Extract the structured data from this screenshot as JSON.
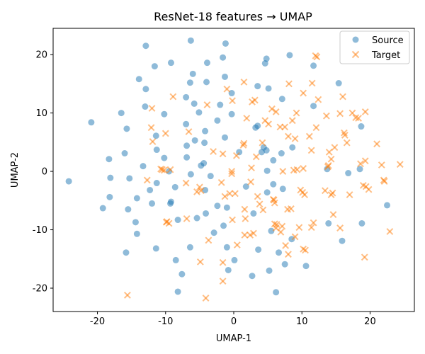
{
  "chart_data": {
    "type": "scatter",
    "title": "ResNet-18 features → UMAP",
    "xlabel": "UMAP-1",
    "ylabel": "UMAP-2",
    "xlim": [
      -26.5,
      26.5
    ],
    "ylim": [
      -24,
      24.5
    ],
    "xticks": [
      -20,
      -10,
      0,
      10,
      20
    ],
    "yticks": [
      -20,
      -10,
      0,
      10,
      20
    ],
    "grid": false,
    "legend_position": "top-right",
    "series": [
      {
        "name": "Source",
        "marker": "circle",
        "color": "#1f77b4",
        "points": [
          [
            -24.2,
            -1.7
          ],
          [
            -20.9,
            8.4
          ],
          [
            -19.2,
            -6.3
          ],
          [
            -18.3,
            2.1
          ],
          [
            -18.1,
            -1.1
          ],
          [
            -18.2,
            -4.4
          ],
          [
            -16.5,
            10.0
          ],
          [
            -16.0,
            3.1
          ],
          [
            -15.7,
            7.3
          ],
          [
            -15.8,
            -13.9
          ],
          [
            -15.5,
            -6.5
          ],
          [
            -15.3,
            -1.2
          ],
          [
            -14.4,
            -8.7
          ],
          [
            -14.2,
            -10.7
          ],
          [
            -14.2,
            -4.6
          ],
          [
            -13.9,
            15.8
          ],
          [
            -13.3,
            0.9
          ],
          [
            -12.9,
            21.5
          ],
          [
            -12.9,
            14.1
          ],
          [
            -13.0,
            11.1
          ],
          [
            -12.3,
            -3.2
          ],
          [
            -12.0,
            -5.5
          ],
          [
            -11.6,
            18.0
          ],
          [
            -11.4,
            6.1
          ],
          [
            -11.3,
            3.7
          ],
          [
            -11.3,
            -2.0
          ],
          [
            -11.4,
            -13.2
          ],
          [
            -10.2,
            9.8
          ],
          [
            -10.2,
            2.3
          ],
          [
            -9.5,
            0.0
          ],
          [
            -9.3,
            -5.5
          ],
          [
            -9.2,
            -5.2
          ],
          [
            -9.2,
            18.6
          ],
          [
            -8.6,
            -2.7
          ],
          [
            -8.5,
            -15.2
          ],
          [
            -8.2,
            -20.6
          ],
          [
            -8.2,
            -8.3
          ],
          [
            -7.6,
            -17.6
          ],
          [
            -7.0,
            12.7
          ],
          [
            -7.0,
            8.1
          ],
          [
            -6.9,
            4.4
          ],
          [
            -6.9,
            2.4
          ],
          [
            -6.4,
            -13.0
          ],
          [
            -6.3,
            -0.5
          ],
          [
            -6.3,
            22.4
          ],
          [
            -6.4,
            15.2
          ],
          [
            -6.0,
            16.7
          ],
          [
            -5.8,
            11.6
          ],
          [
            -5.7,
            5.3
          ],
          [
            -5.4,
            -8.0
          ],
          [
            -5.1,
            10.1
          ],
          [
            -4.8,
            1.0
          ],
          [
            -4.4,
            1.4
          ],
          [
            -4.3,
            4.9
          ],
          [
            -4.2,
            6.9
          ],
          [
            -4.2,
            -3.2
          ],
          [
            -4.1,
            -7.2
          ],
          [
            -4.0,
            15.3
          ],
          [
            -3.9,
            18.6
          ],
          [
            -3.4,
            -0.8
          ],
          [
            -2.9,
            -10.5
          ],
          [
            -2.4,
            8.7
          ],
          [
            -2.4,
            -5.9
          ],
          [
            -2.0,
            11.4
          ],
          [
            -1.6,
            19.5
          ],
          [
            -1.5,
            -9.3
          ],
          [
            -1.3,
            16.2
          ],
          [
            -1.3,
            5.8
          ],
          [
            -1.2,
            21.9
          ],
          [
            -1.0,
            -6.2
          ],
          [
            -1.0,
            -13.0
          ],
          [
            -0.8,
            -16.9
          ],
          [
            -0.3,
            9.8
          ],
          [
            -0.3,
            13.4
          ],
          [
            0.1,
            -15.2
          ],
          [
            0.8,
            3.3
          ],
          [
            1.8,
            -2.6
          ],
          [
            2.7,
            -17.9
          ],
          [
            2.9,
            -7.2
          ],
          [
            3.2,
            7.5
          ],
          [
            3.5,
            7.8
          ],
          [
            3.5,
            14.6
          ],
          [
            3.6,
            -13.4
          ],
          [
            4.1,
            3.3
          ],
          [
            4.4,
            4.1
          ],
          [
            4.6,
            18.5
          ],
          [
            4.8,
            19.3
          ],
          [
            4.8,
            3.6
          ],
          [
            4.9,
            -3.6
          ],
          [
            4.9,
            0.1
          ],
          [
            5.1,
            14.2
          ],
          [
            5.2,
            -17.0
          ],
          [
            5.5,
            -10.2
          ],
          [
            5.8,
            -2.2
          ],
          [
            5.8,
            1.9
          ],
          [
            6.2,
            -20.7
          ],
          [
            6.6,
            -13.9
          ],
          [
            7.0,
            3.1
          ],
          [
            7.1,
            12.4
          ],
          [
            7.2,
            -3.0
          ],
          [
            7.5,
            -15.9
          ],
          [
            8.2,
            19.9
          ],
          [
            8.6,
            4.1
          ],
          [
            8.5,
            -11.6
          ],
          [
            10.6,
            -16.2
          ],
          [
            11.7,
            18.1
          ],
          [
            11.7,
            11.2
          ],
          [
            13.9,
            -8.9
          ],
          [
            13.7,
            0.4
          ],
          [
            15.4,
            15.1
          ],
          [
            15.9,
            -11.9
          ],
          [
            16.8,
            -0.3
          ],
          [
            18.5,
            0.4
          ],
          [
            18.7,
            7.7
          ],
          [
            18.8,
            -8.9
          ],
          [
            22.5,
            -5.8
          ]
        ]
      },
      {
        "name": "Target",
        "marker": "x",
        "color": "#ff7f0e",
        "points": [
          [
            -15.6,
            -21.2
          ],
          [
            -12.7,
            -1.5
          ],
          [
            -12.1,
            7.5
          ],
          [
            -12.0,
            10.8
          ],
          [
            -11.9,
            5.1
          ],
          [
            -10.7,
            0.4
          ],
          [
            -10.5,
            0.3
          ],
          [
            -10.2,
            0.2
          ],
          [
            -10.0,
            6.5
          ],
          [
            -9.9,
            -8.7
          ],
          [
            -9.8,
            -8.6
          ],
          [
            -9.5,
            -8.9
          ],
          [
            -9.3,
            0.3
          ],
          [
            -8.9,
            12.8
          ],
          [
            -7.0,
            -2.0
          ],
          [
            -6.9,
            -8.1
          ],
          [
            -6.6,
            6.8
          ],
          [
            -5.4,
            -3.5
          ],
          [
            -5.0,
            -2.7
          ],
          [
            -4.9,
            -15.5
          ],
          [
            -4.8,
            -3.3
          ],
          [
            -4.1,
            -21.7
          ],
          [
            -3.9,
            11.4
          ],
          [
            -3.7,
            -11.8
          ],
          [
            -3.0,
            3.4
          ],
          [
            -1.8,
            -1.9
          ],
          [
            -1.6,
            3.0
          ],
          [
            -1.6,
            -15.6
          ],
          [
            -1.6,
            -18.8
          ],
          [
            -1.3,
            -4.3
          ],
          [
            -1.0,
            14.1
          ],
          [
            -0.6,
            -3.8
          ],
          [
            -0.3,
            0.0
          ],
          [
            -0.3,
            -0.4
          ],
          [
            -0.2,
            -8.3
          ],
          [
            -0.2,
            12.1
          ],
          [
            0.2,
            -3.8
          ],
          [
            0.4,
            2.7
          ],
          [
            0.5,
            -12.6
          ],
          [
            1.4,
            4.5
          ],
          [
            1.5,
            4.8
          ],
          [
            1.5,
            15.3
          ],
          [
            1.6,
            -6.5
          ],
          [
            1.6,
            -10.9
          ],
          [
            1.7,
            -8.1
          ],
          [
            1.9,
            9.1
          ],
          [
            2.4,
            -10.9
          ],
          [
            2.5,
            -1.8
          ],
          [
            2.6,
            0.6
          ],
          [
            2.7,
            11.9
          ],
          [
            2.9,
            -10.6
          ],
          [
            3.1,
            12.2
          ],
          [
            3.3,
            2.5
          ],
          [
            3.5,
            -4.3
          ],
          [
            3.8,
            -5.6
          ],
          [
            4.2,
            4.9
          ],
          [
            4.3,
            -6.6
          ],
          [
            4.6,
            8.7
          ],
          [
            5.1,
            8.1
          ],
          [
            5.6,
            10.7
          ],
          [
            5.8,
            -4.8
          ],
          [
            5.9,
            -4.9
          ],
          [
            6.0,
            -5.4
          ],
          [
            6.0,
            -9.0
          ],
          [
            6.2,
            -9.7
          ],
          [
            6.2,
            10.2
          ],
          [
            6.3,
            -9.1
          ],
          [
            6.8,
            7.6
          ],
          [
            6.9,
            -10.4
          ],
          [
            7.1,
            -9.4
          ],
          [
            7.2,
            0.0
          ],
          [
            7.5,
            7.6
          ],
          [
            7.6,
            -12.7
          ],
          [
            7.9,
            -6.5
          ],
          [
            8.0,
            6.0
          ],
          [
            8.0,
            -14.2
          ],
          [
            8.1,
            15.0
          ],
          [
            8.4,
            -6.4
          ],
          [
            8.6,
            8.7
          ],
          [
            8.8,
            0.2
          ],
          [
            9.0,
            5.6
          ],
          [
            9.0,
            -11.2
          ],
          [
            9.2,
            10.0
          ],
          [
            9.3,
            0.3
          ],
          [
            9.6,
            -9.6
          ],
          [
            9.8,
            -3.2
          ],
          [
            10.1,
            -3.6
          ],
          [
            10.2,
            13.4
          ],
          [
            10.2,
            -13.3
          ],
          [
            10.2,
            0.5
          ],
          [
            10.4,
            -4.0
          ],
          [
            10.5,
            -13.5
          ],
          [
            11.1,
            6.0
          ],
          [
            11.4,
            -9.6
          ],
          [
            11.4,
            3.6
          ],
          [
            11.5,
            15.1
          ],
          [
            11.7,
            -8.8
          ],
          [
            12.0,
            19.8
          ],
          [
            12.2,
            19.6
          ],
          [
            12.1,
            7.5
          ],
          [
            12.4,
            12.3
          ],
          [
            13.4,
            -3.3
          ],
          [
            13.6,
            9.5
          ],
          [
            13.8,
            0.8
          ],
          [
            13.9,
            1.0
          ],
          [
            14.0,
            3.3
          ],
          [
            14.3,
            2.1
          ],
          [
            14.3,
            -4.0
          ],
          [
            14.5,
            -3.7
          ],
          [
            14.6,
            -7.4
          ],
          [
            14.8,
            4.1
          ],
          [
            15.6,
            -9.7
          ],
          [
            15.6,
            9.9
          ],
          [
            16.0,
            12.8
          ],
          [
            16.3,
            6.2
          ],
          [
            16.2,
            6.6
          ],
          [
            16.6,
            4.9
          ],
          [
            17.0,
            -4.0
          ],
          [
            17.4,
            10.0
          ],
          [
            17.9,
            9.2
          ],
          [
            18.3,
            9.1
          ],
          [
            18.6,
            1.3
          ],
          [
            19.0,
            -2.4
          ],
          [
            19.2,
            -14.7
          ],
          [
            19.3,
            10.2
          ],
          [
            19.3,
            1.8
          ],
          [
            19.4,
            -2.6
          ],
          [
            19.8,
            -3.1
          ],
          [
            21.0,
            4.7
          ],
          [
            21.7,
            1.1
          ],
          [
            22.0,
            -1.5
          ],
          [
            22.1,
            -1.7
          ],
          [
            22.9,
            -10.3
          ],
          [
            24.4,
            1.2
          ]
        ]
      }
    ]
  }
}
